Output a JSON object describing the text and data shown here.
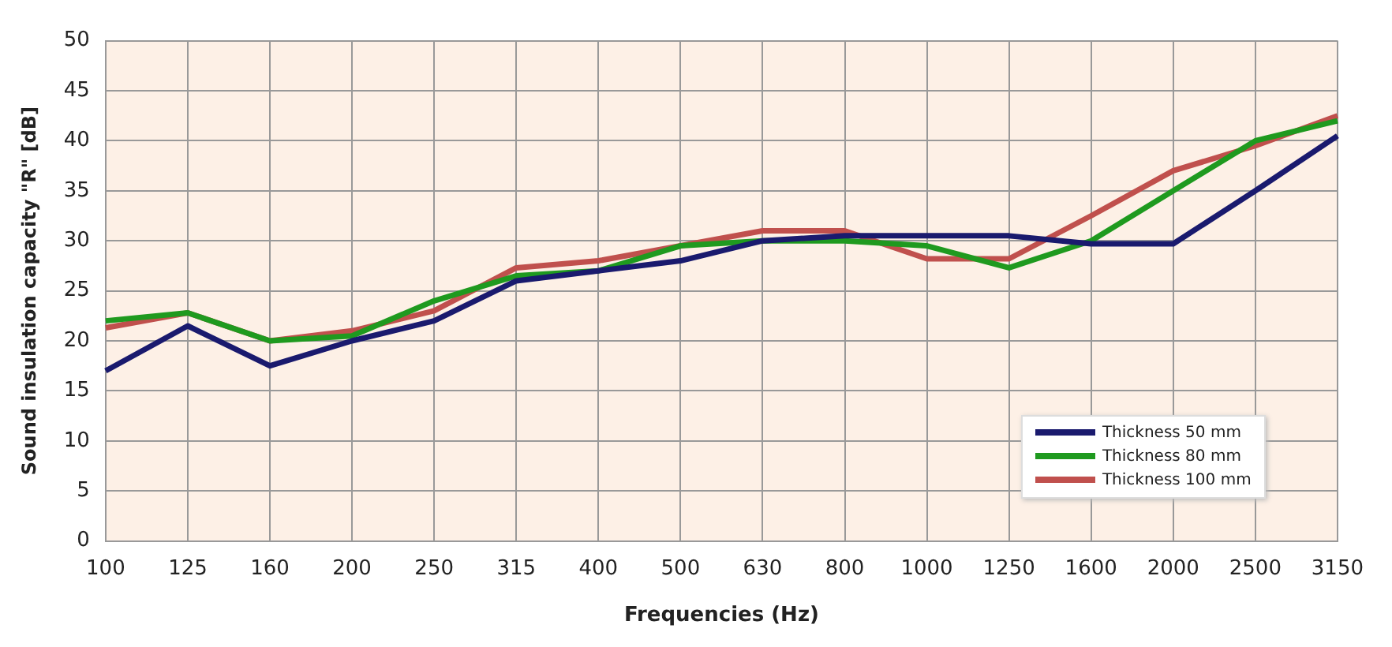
{
  "chart_data": {
    "type": "line",
    "xlabel": "Frequencies (Hz)",
    "ylabel": "Sound insulation capacity \"R\" [dB]",
    "categories": [
      "100",
      "125",
      "160",
      "200",
      "250",
      "315",
      "400",
      "500",
      "630",
      "800",
      "1000",
      "1250",
      "1600",
      "2000",
      "2500",
      "3150"
    ],
    "series": [
      {
        "name": "Thickness 50 mm",
        "color": "#1a1a6e",
        "values": [
          17,
          21.5,
          17.5,
          20,
          22,
          26,
          27,
          28,
          30,
          30.5,
          30.5,
          30.5,
          29.7,
          29.7,
          35,
          40.5
        ]
      },
      {
        "name": "Thickness 80 mm",
        "color": "#1f9a1f",
        "values": [
          22,
          22.8,
          20,
          20.5,
          24,
          26.5,
          27,
          29.5,
          30,
          30,
          29.5,
          27.3,
          30,
          35,
          40,
          42
        ]
      },
      {
        "name": "Thickness 100 mm",
        "color": "#c0504d",
        "values": [
          21.3,
          22.8,
          20,
          21,
          23,
          27.3,
          28,
          29.5,
          31,
          31,
          28.2,
          28.2,
          32.5,
          37,
          39.5,
          42.5
        ]
      }
    ],
    "ylim": [
      0,
      50
    ],
    "yticks": [
      0,
      5,
      10,
      15,
      20,
      25,
      30,
      35,
      40,
      45,
      50
    ],
    "grid": true,
    "legend": "bottom right",
    "marker": "none",
    "line_style": "solid"
  }
}
